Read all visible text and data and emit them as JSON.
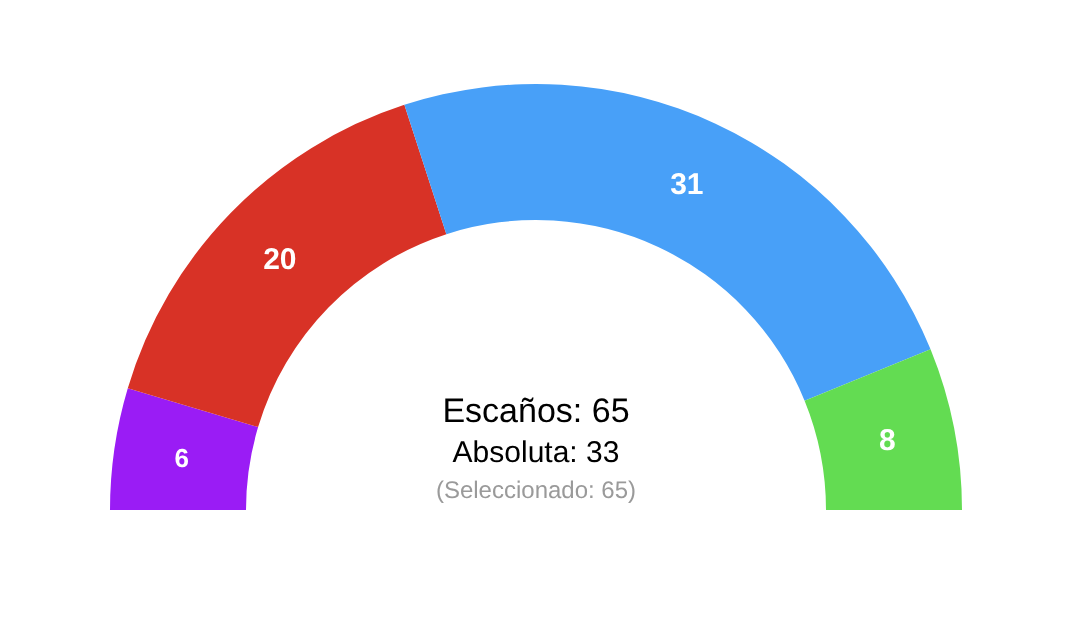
{
  "chart_data": {
    "type": "donut",
    "categories": [
      null,
      null,
      null,
      null
    ],
    "values": [
      6,
      20,
      31,
      8
    ],
    "colors": [
      "#9a1cf5",
      "#d83226",
      "#48a0f8",
      "#63dc52"
    ],
    "data_labels": true,
    "annotations": [
      "Escaños: 65",
      "Absoluta: 33",
      "(Seleccionado: 65)"
    ]
  }
}
